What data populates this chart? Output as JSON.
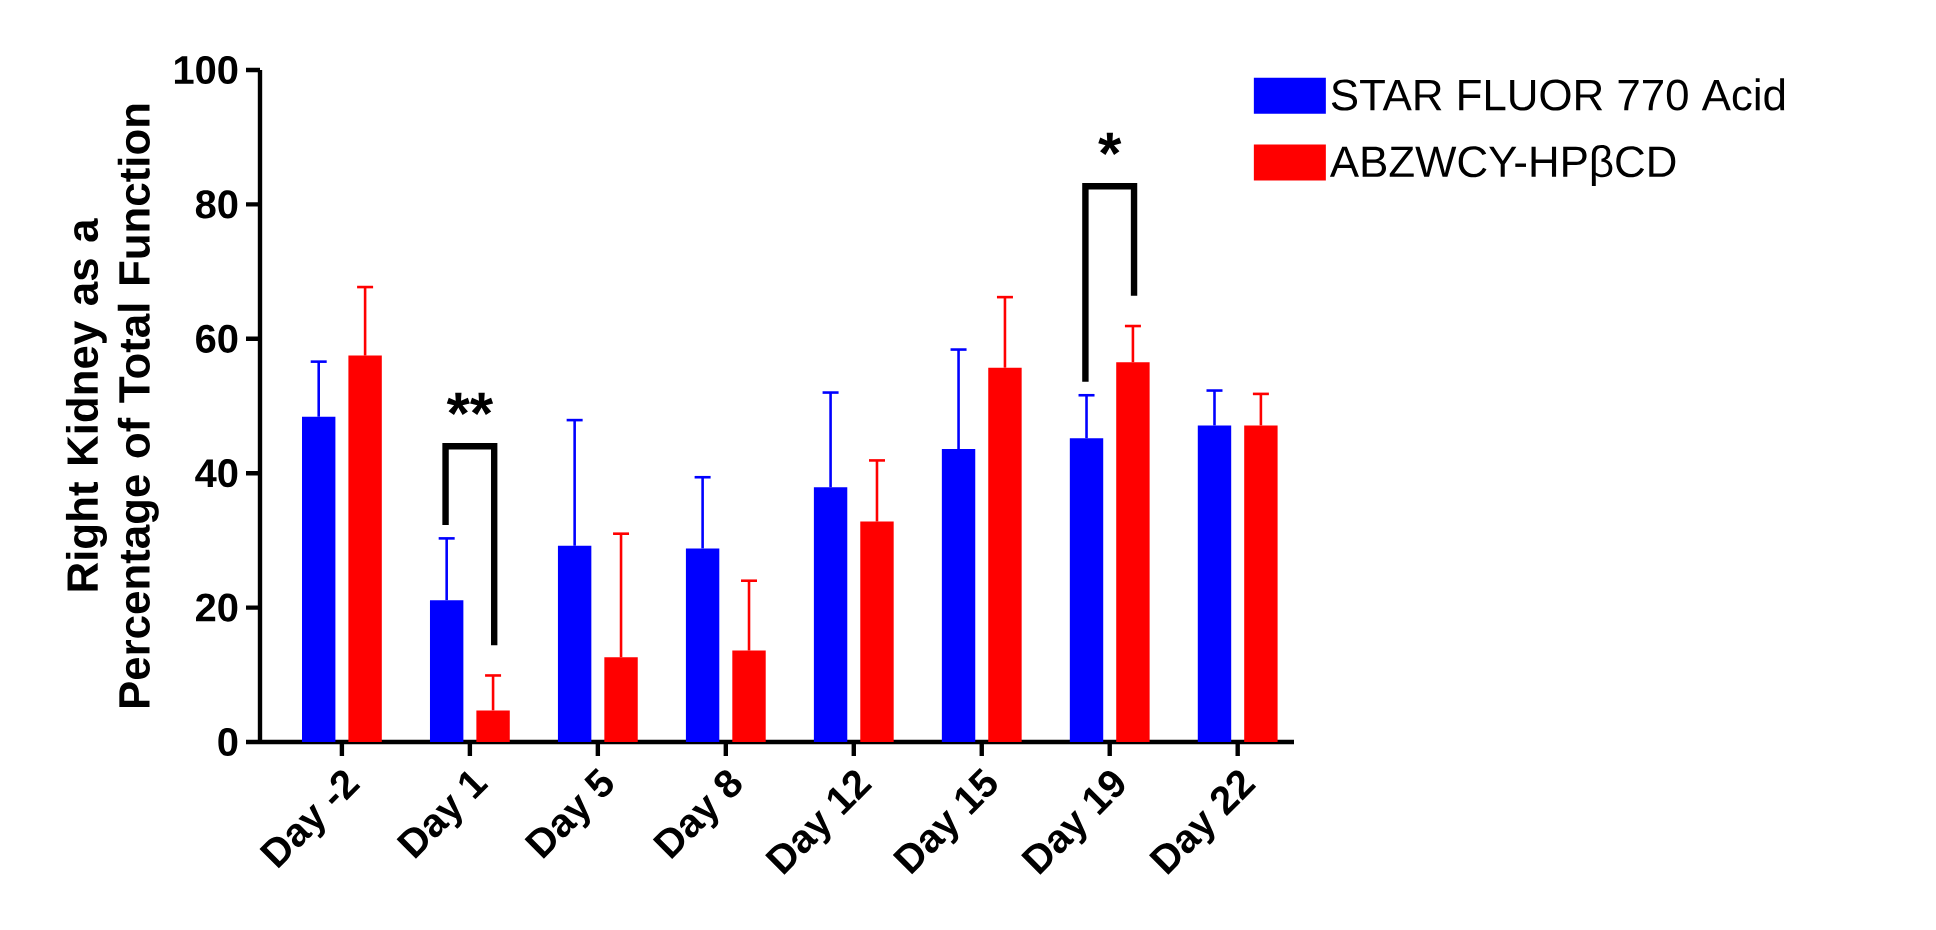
{
  "chart_data": {
    "type": "bar",
    "ylabel": "Right Kidney as a Percentage of Total Function",
    "categories": [
      "Day -2",
      "Day 1",
      "Day 5",
      "Day 8",
      "Day 12",
      "Day 15",
      "Day 19",
      "Day 22"
    ],
    "series": [
      {
        "name": "STAR FLUOR 770 Acid",
        "color": "#0000ff",
        "values": [
          48.4,
          21.1,
          29.2,
          28.8,
          37.9,
          43.6,
          45.2,
          47.1
        ],
        "errors": [
          [
            48.4,
            56.6
          ],
          [
            21.1,
            30.3
          ],
          [
            29.2,
            47.9
          ],
          [
            28.8,
            39.4
          ],
          [
            37.9,
            52.0
          ],
          [
            43.6,
            58.4
          ],
          [
            45.2,
            51.6
          ],
          [
            47.1,
            52.3
          ]
        ]
      },
      {
        "name": "ABZWCY-HPβCD",
        "color": "#ff0000",
        "values": [
          57.5,
          4.7,
          12.6,
          13.6,
          32.8,
          55.7,
          56.5,
          47.1
        ],
        "errors": [
          [
            57.5,
            67.7
          ],
          [
            4.7,
            9.9
          ],
          [
            12.6,
            31.0
          ],
          [
            13.6,
            24.0
          ],
          [
            32.8,
            41.9
          ],
          [
            55.7,
            66.2
          ],
          [
            56.5,
            61.9
          ],
          [
            47.1,
            51.8
          ]
        ]
      }
    ],
    "ylim": [
      0,
      100
    ],
    "yticks": [
      0,
      20,
      40,
      60,
      80,
      100
    ],
    "grid": false,
    "legend": "right",
    "annotations": [
      "**",
      "*"
    ]
  }
}
